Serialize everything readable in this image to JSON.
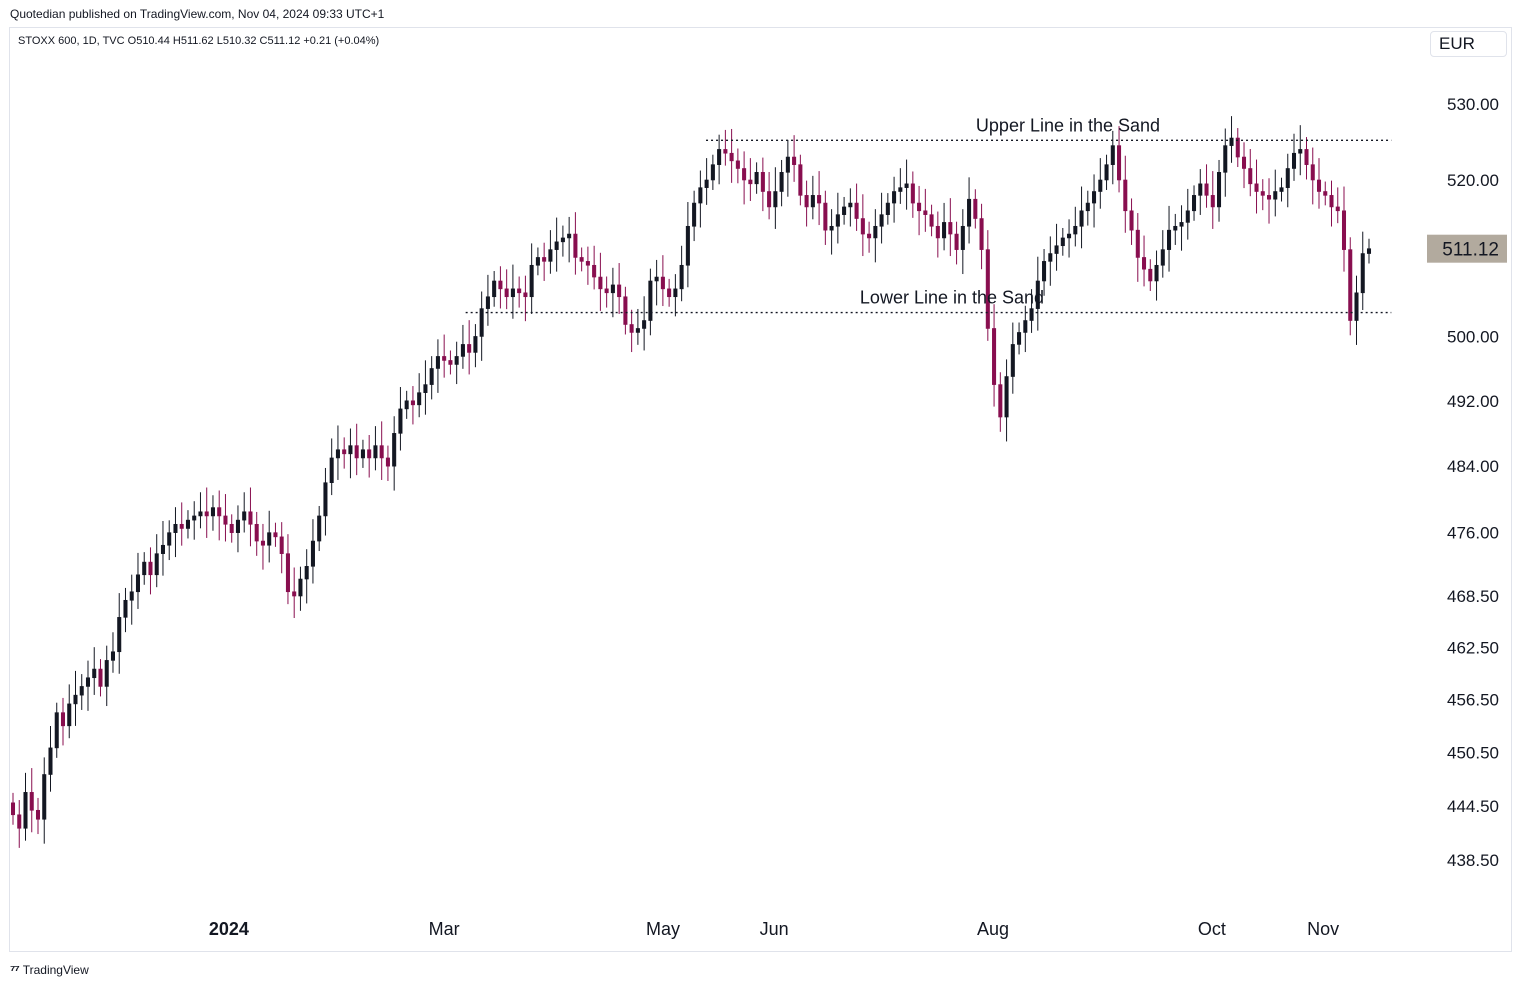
{
  "header": {
    "published": "Quotedian published on TradingView.com, Nov 04, 2024 09:33 UTC+1"
  },
  "legend": {
    "symbol_line": "STOXX 600, 1D, TVC  O510.44  H511.62  L510.32  C511.12  +0.21 (+0.04%)"
  },
  "currency": "EUR",
  "last_price_label": "511.12",
  "footer": {
    "brand": "TradingView",
    "logo": "TradingView logo"
  },
  "colors": {
    "up": "#131722",
    "down": "#880e4f",
    "price_tag": "#b2aa9e",
    "grid_line": "#131722"
  },
  "chart_data": {
    "type": "candlestick",
    "title": "",
    "xlabel": "",
    "ylabel": "",
    "scale": "log",
    "ylim": [
      435,
      535
    ],
    "grid": false,
    "y_ticks": [
      "530.00",
      "520.00",
      "500.00",
      "492.00",
      "484.00",
      "476.00",
      "468.50",
      "462.50",
      "456.50",
      "450.50",
      "444.50",
      "438.50"
    ],
    "x_ticks": [
      {
        "label": "2024",
        "date": "2024-01-01"
      },
      {
        "label": "Mar",
        "date": "2024-03-01"
      },
      {
        "label": "May",
        "date": "2024-05-01"
      },
      {
        "label": "Jun",
        "date": "2024-06-01"
      },
      {
        "label": "Aug",
        "date": "2024-08-01"
      },
      {
        "label": "Oct",
        "date": "2024-10-01"
      },
      {
        "label": "Nov",
        "date": "2024-11-01"
      }
    ],
    "x_range": [
      "2023-11-01",
      "2024-11-28"
    ],
    "lines": [
      {
        "label": "Upper Line in the Sand",
        "value": 525.2,
        "from": "2024-05-13",
        "to": "2024-11-20"
      },
      {
        "label": "Lower Line in the Sand",
        "value": 503.0,
        "from": "2024-03-07",
        "to": "2024-11-20"
      }
    ],
    "close": [
      443.5,
      442.0,
      446.0,
      444.0,
      443.0,
      448.0,
      451.0,
      455.0,
      453.5,
      456.0,
      457.0,
      458.0,
      459.0,
      460.0,
      458.0,
      461.0,
      462.0,
      466.0,
      468.0,
      469.0,
      471.0,
      472.5,
      471.0,
      473.5,
      474.5,
      476.0,
      477.0,
      476.5,
      477.5,
      478.0,
      478.5,
      478.0,
      479.0,
      478.0,
      477.0,
      476.0,
      477.5,
      478.5,
      477.0,
      475.0,
      474.5,
      476.0,
      475.5,
      473.5,
      469.0,
      468.5,
      470.5,
      472.0,
      475.0,
      478.0,
      482.0,
      485.0,
      486.0,
      485.5,
      486.5,
      485.0,
      486.0,
      485.0,
      486.5,
      485.0,
      484.0,
      488.0,
      491.0,
      492.0,
      491.5,
      493.0,
      494.0,
      496.0,
      497.5,
      497.0,
      496.5,
      497.5,
      499.0,
      498.0,
      500.0,
      503.5,
      505.0,
      507.0,
      506.0,
      505.0,
      506.0,
      505.5,
      505.0,
      509.0,
      510.0,
      509.5,
      511.0,
      512.0,
      512.5,
      513.0,
      510.0,
      509.5,
      509.0,
      507.5,
      506.0,
      505.5,
      506.5,
      505.0,
      501.5,
      500.5,
      501.0,
      502.0,
      507.0,
      507.5,
      506.0,
      505.0,
      506.0,
      509.0,
      514.0,
      517.0,
      519.0,
      520.0,
      522.0,
      524.0,
      523.5,
      522.5,
      521.5,
      520.0,
      519.5,
      521.0,
      518.5,
      516.5,
      518.5,
      521.0,
      523.0,
      522.0,
      518.0,
      516.5,
      518.0,
      517.0,
      513.5,
      514.0,
      515.5,
      516.5,
      517.0,
      515.0,
      513.0,
      512.5,
      514.0,
      515.5,
      517.0,
      518.5,
      519.0,
      519.5,
      517.0,
      516.0,
      515.5,
      514.0,
      512.5,
      514.5,
      513.0,
      511.0,
      514.0,
      517.5,
      515.0,
      511.0,
      501.0,
      494.0,
      490.0,
      495.0,
      499.0,
      500.5,
      502.0,
      503.5,
      507.0,
      509.5,
      510.5,
      511.5,
      512.5,
      513.0,
      514.0,
      516.0,
      517.0,
      518.5,
      520.0,
      522.0,
      524.5,
      520.0,
      516.0,
      513.5,
      510.0,
      508.5,
      507.0,
      509.0,
      511.0,
      513.5,
      514.0,
      514.5,
      516.0,
      518.0,
      519.5,
      518.0,
      516.5,
      521.0,
      524.5,
      525.5,
      523.0,
      521.5,
      519.5,
      518.5,
      518.0,
      517.5,
      518.5,
      519.0,
      521.5,
      523.5,
      524.0,
      522.0,
      520.0,
      518.5,
      518.0,
      516.5,
      516.0,
      511.0,
      502.0,
      505.5,
      510.5,
      511.12
    ]
  }
}
